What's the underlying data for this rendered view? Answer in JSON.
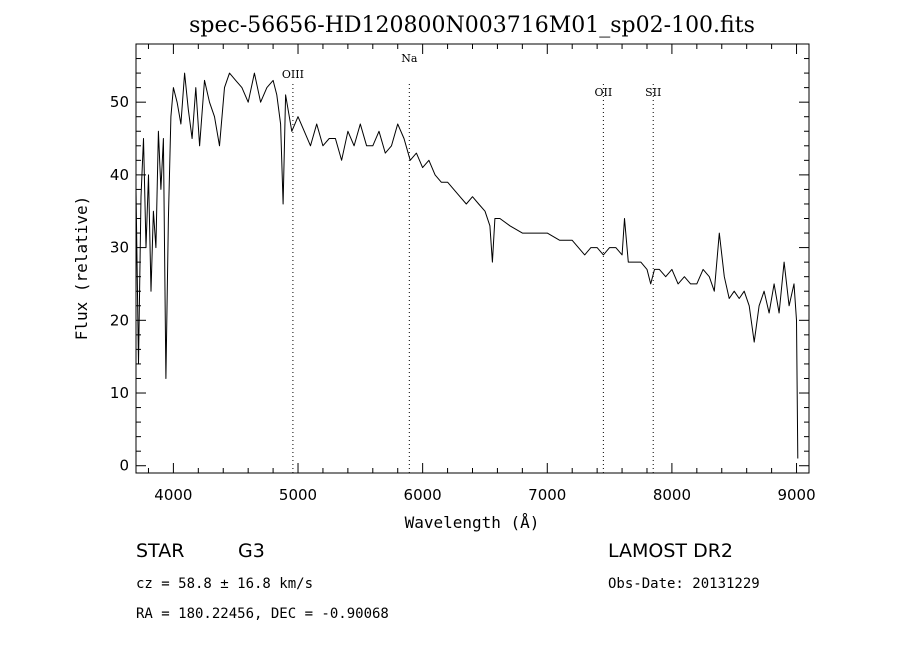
{
  "chart_data": {
    "type": "line",
    "title": "spec-56656-HD120800N003716M01_sp02-100.fits",
    "xlabel": "Wavelength (Å)",
    "ylabel": "Flux (relative)",
    "xlim": [
      3700,
      9100
    ],
    "ylim": [
      -1,
      58
    ],
    "xticks": [
      4000,
      5000,
      6000,
      7000,
      8000,
      9000
    ],
    "yticks": [
      0,
      10,
      20,
      30,
      40,
      50
    ],
    "grid": false,
    "series": [
      {
        "x": [
          3700,
          3720,
          3740,
          3760,
          3780,
          3800,
          3820,
          3840,
          3860,
          3880,
          3900,
          3920,
          3940,
          3960,
          3980,
          4000,
          4030,
          4060,
          4090,
          4120,
          4150,
          4180,
          4210,
          4250,
          4290,
          4330,
          4370,
          4410,
          4450,
          4500,
          4550,
          4600,
          4650,
          4700,
          4750,
          4800,
          4830,
          4860,
          4880,
          4900,
          4950,
          5000,
          5050,
          5100,
          5150,
          5200,
          5250,
          5300,
          5350,
          5400,
          5450,
          5500,
          5550,
          5600,
          5650,
          5700,
          5750,
          5800,
          5850,
          5900,
          5950,
          6000,
          6050,
          6100,
          6150,
          6200,
          6250,
          6300,
          6350,
          6400,
          6450,
          6500,
          6540,
          6560,
          6580,
          6620,
          6700,
          6800,
          6900,
          7000,
          7100,
          7200,
          7300,
          7350,
          7400,
          7450,
          7500,
          7550,
          7600,
          7620,
          7650,
          7700,
          7750,
          7800,
          7830,
          7860,
          7900,
          7950,
          8000,
          8050,
          8100,
          8150,
          8200,
          8250,
          8300,
          8340,
          8380,
          8420,
          8460,
          8500,
          8540,
          8580,
          8620,
          8660,
          8700,
          8740,
          8780,
          8820,
          8860,
          8900,
          8940,
          8980,
          9000,
          9010
        ],
        "y": [
          38,
          14,
          37,
          45,
          30,
          40,
          24,
          35,
          30,
          46,
          38,
          45,
          12,
          34,
          48,
          52,
          50,
          47,
          54,
          49,
          45,
          52,
          44,
          53,
          50,
          48,
          44,
          52,
          54,
          53,
          52,
          50,
          54,
          50,
          52,
          53,
          51,
          47,
          36,
          51,
          46,
          48,
          46,
          44,
          47,
          44,
          45,
          45,
          42,
          46,
          44,
          47,
          44,
          44,
          46,
          43,
          44,
          47,
          45,
          42,
          43,
          41,
          42,
          40,
          39,
          39,
          38,
          37,
          36,
          37,
          36,
          35,
          33,
          28,
          34,
          34,
          33,
          32,
          32,
          32,
          31,
          31,
          29,
          30,
          30,
          29,
          30,
          30,
          29,
          34,
          28,
          28,
          28,
          27,
          25,
          27,
          27,
          26,
          27,
          25,
          26,
          25,
          25,
          27,
          26,
          24,
          32,
          26,
          23,
          24,
          23,
          24,
          22,
          17,
          22,
          24,
          21,
          25,
          21,
          28,
          22,
          25,
          20,
          1
        ]
      }
    ],
    "annotations": [
      {
        "label": "OIII",
        "x": 4959
      },
      {
        "label": "Na",
        "x": 5893
      },
      {
        "label": "OII",
        "x": 7450
      },
      {
        "label": "SII",
        "x": 7850
      }
    ]
  },
  "info": {
    "object_class": "STAR",
    "subclass": "G3",
    "cz": "cz = 58.8 ± 16.8 km/s",
    "coords": "RA = 180.22456, DEC =  -0.90068",
    "survey": "LAMOST DR2",
    "obs_date": "Obs-Date: 20131229"
  }
}
